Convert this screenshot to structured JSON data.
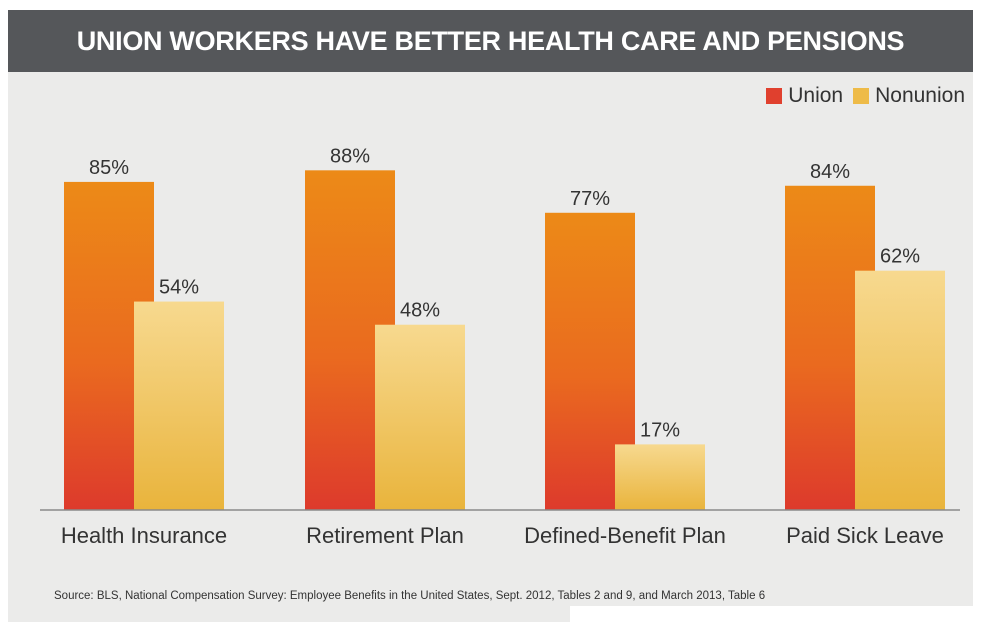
{
  "title": "UNION WORKERS HAVE BETTER HEALTH CARE AND PENSIONS",
  "source": "Source: BLS, National Compensation Survey: Employee Benefits in the United States, Sept. 2012, Tables 2 and 9, and March 2013, Table 6",
  "legend": [
    {
      "label": "Union",
      "color": "#e0402e"
    },
    {
      "label": "Nonunion",
      "color": "#eebb48"
    }
  ],
  "chart_data": {
    "type": "bar",
    "title": "UNION WORKERS HAVE BETTER HEALTH CARE AND PENSIONS",
    "categories": [
      "Health Insurance",
      "Retirement Plan",
      "Defined-Benefit Plan",
      "Paid Sick Leave"
    ],
    "series": [
      {
        "name": "Union",
        "values": [
          85,
          88,
          77,
          84
        ],
        "labels": [
          "85%",
          "88%",
          "77%",
          "84%"
        ],
        "color": "#e0402e"
      },
      {
        "name": "Nonunion",
        "values": [
          54,
          48,
          17,
          62
        ],
        "labels": [
          "54%",
          "48%",
          "17%",
          "62%"
        ],
        "color": "#eebb48"
      }
    ],
    "ylim": [
      0,
      100
    ],
    "legend_position": "top-right",
    "grid": false
  }
}
